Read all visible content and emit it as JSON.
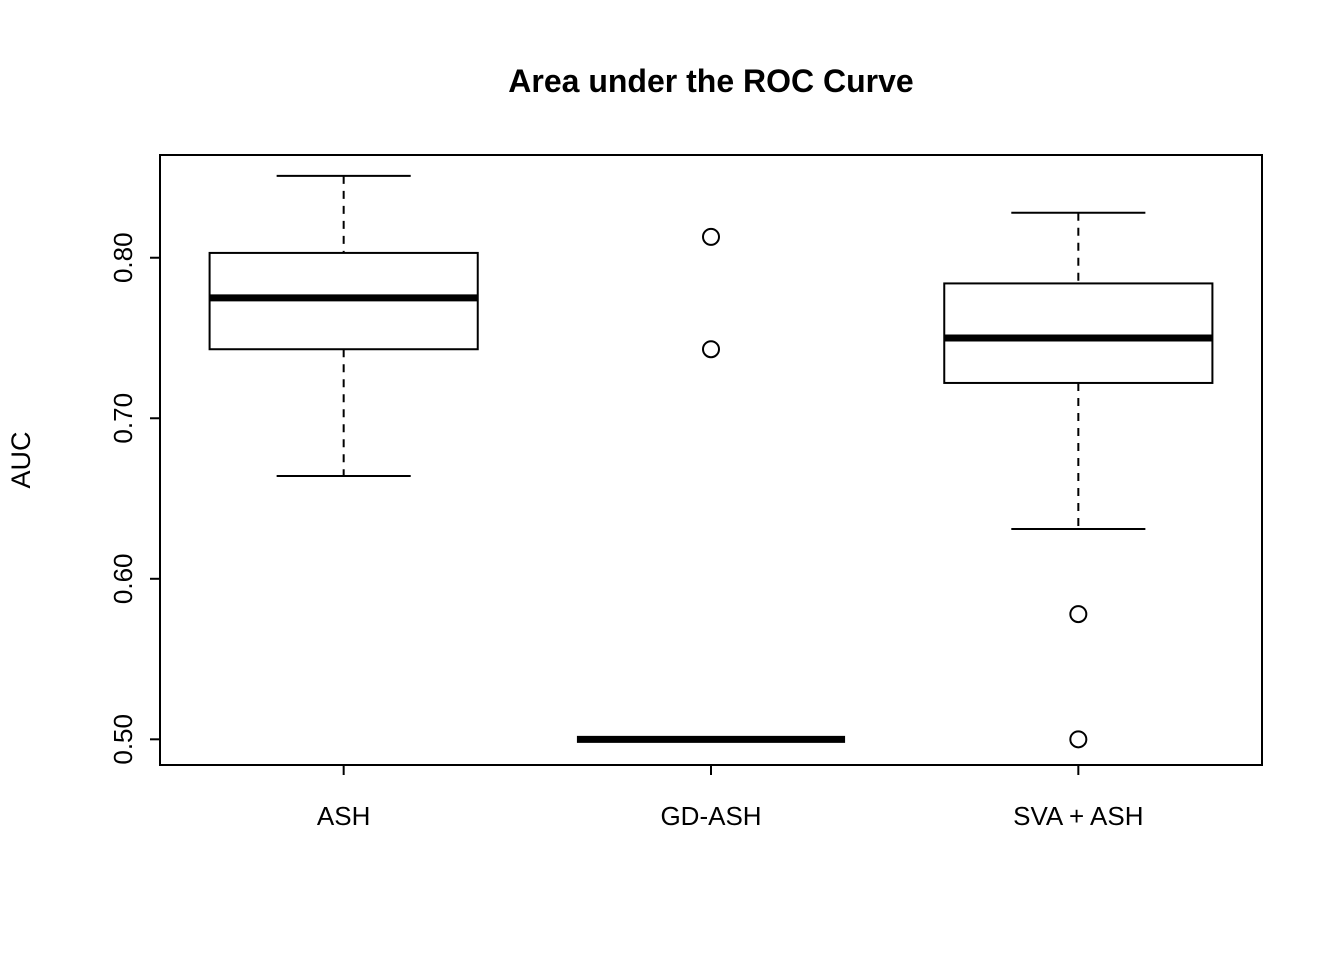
{
  "chart_data": {
    "type": "boxplot",
    "title": "Area under the ROC Curve",
    "xlabel": "",
    "ylabel": "AUC",
    "categories": [
      "ASH",
      "GD-ASH",
      "SVA + ASH"
    ],
    "ylim": [
      0.484,
      0.864
    ],
    "yticks": [
      0.5,
      0.6,
      0.7,
      0.8
    ],
    "ytick_labels": [
      "0.50",
      "0.60",
      "0.70",
      "0.80"
    ],
    "grid": false,
    "legend": false,
    "series": [
      {
        "name": "ASH",
        "whisker_low": 0.664,
        "q1": 0.743,
        "median": 0.775,
        "q3": 0.803,
        "whisker_high": 0.851,
        "outliers": []
      },
      {
        "name": "GD-ASH",
        "whisker_low": 0.5,
        "q1": 0.5,
        "median": 0.5,
        "q3": 0.5,
        "whisker_high": 0.5,
        "outliers": [
          0.813,
          0.743
        ]
      },
      {
        "name": "SVA + ASH",
        "whisker_low": 0.631,
        "q1": 0.722,
        "median": 0.75,
        "q3": 0.784,
        "whisker_high": 0.828,
        "outliers": [
          0.578,
          0.5
        ]
      }
    ]
  }
}
